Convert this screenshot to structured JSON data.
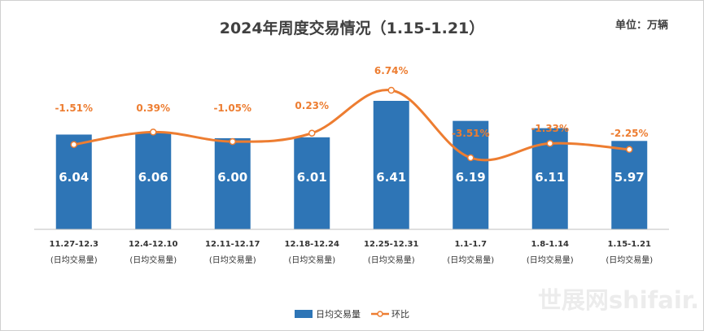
{
  "chart_data": {
    "type": "bar",
    "title": "2024年周度交易情况（1.15-1.21）",
    "unit": "单位：万辆",
    "categories": [
      "11.27-12.3",
      "12.4-12.10",
      "12.11-12.17",
      "12.18-12.24",
      "12.25-12.31",
      "1.1-1.7",
      "1.8-1.14",
      "1.15-1.21"
    ],
    "category_sublabel": "(日均交易量)",
    "series": [
      {
        "name": "日均交易量",
        "kind": "bar",
        "color": "#2e75b6",
        "values": [
          6.04,
          6.06,
          6.0,
          6.01,
          6.41,
          6.19,
          6.11,
          5.97
        ],
        "labels": [
          "6.04",
          "6.06",
          "6.00",
          "6.01",
          "6.41",
          "6.19",
          "6.11",
          "5.97"
        ]
      },
      {
        "name": "环比",
        "kind": "line",
        "color": "#ed7d31",
        "values": [
          -1.51,
          0.39,
          -1.05,
          0.23,
          6.74,
          -3.51,
          -1.33,
          -2.25
        ],
        "labels": [
          "-1.51%",
          "0.39%",
          "-1.05%",
          "0.23%",
          "6.74%",
          "-3.51%",
          "-1.33%",
          "-2.25%"
        ]
      }
    ],
    "legend": {
      "position": "bottom",
      "entries": [
        "日均交易量",
        "环比"
      ]
    },
    "grid": false
  },
  "watermark": "世展网shifair."
}
